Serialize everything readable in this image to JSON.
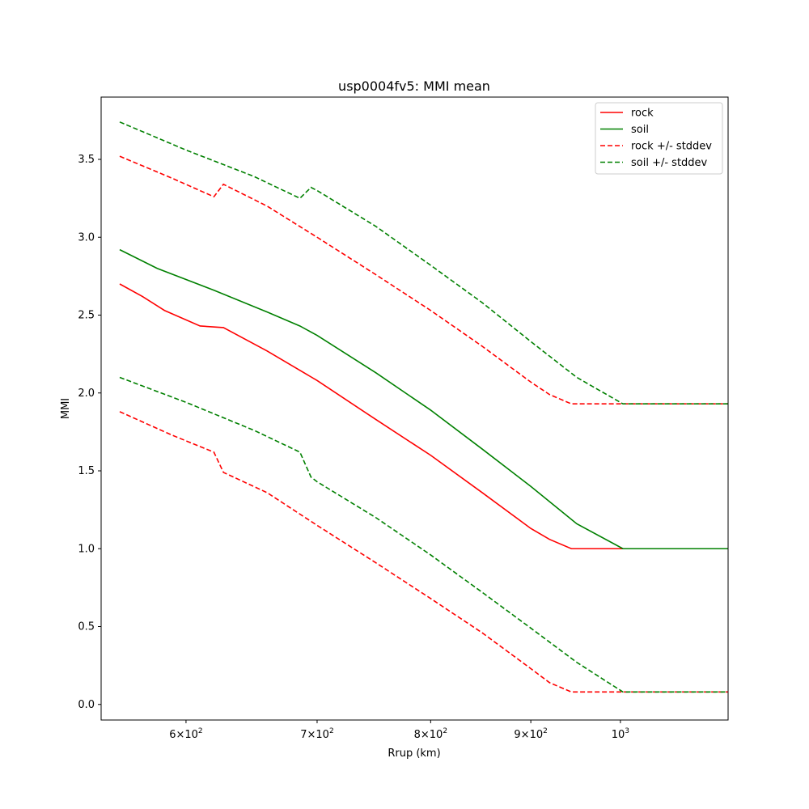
{
  "chart_data": {
    "type": "line",
    "title": "usp0004fv5: MMI mean",
    "xlabel": "Rrup (km)",
    "ylabel": "MMI",
    "xscale": "log",
    "xlim": [
      543,
      1135
    ],
    "ylim": [
      -0.1,
      3.9
    ],
    "grid": false,
    "legend_placement": "top-right",
    "x_tick_labels": [
      {
        "value": 600,
        "base": "6×10",
        "exp": "2"
      },
      {
        "value": 700,
        "base": "7×10",
        "exp": "2"
      },
      {
        "value": 800,
        "base": "8×10",
        "exp": "2"
      },
      {
        "value": 900,
        "base": "9×10",
        "exp": "2"
      },
      {
        "value": 1000,
        "base": "10",
        "exp": "3"
      }
    ],
    "y_ticks": [
      0.0,
      0.5,
      1.0,
      1.5,
      2.0,
      2.5,
      3.0,
      3.5
    ],
    "y_tick_labels": [
      "0.0",
      "0.5",
      "1.0",
      "1.5",
      "2.0",
      "2.5",
      "3.0",
      "3.5"
    ],
    "series": [
      {
        "name": "rock",
        "color": "#ff0000",
        "dash": "solid",
        "points": [
          [
            555,
            2.7
          ],
          [
            570,
            2.62
          ],
          [
            585,
            2.53
          ],
          [
            610,
            2.43
          ],
          [
            627,
            2.42
          ],
          [
            660,
            2.27
          ],
          [
            700,
            2.08
          ],
          [
            750,
            1.83
          ],
          [
            800,
            1.6
          ],
          [
            850,
            1.36
          ],
          [
            900,
            1.13
          ],
          [
            920,
            1.06
          ],
          [
            944,
            1.0
          ],
          [
            1135,
            1.0
          ]
        ]
      },
      {
        "name": "soil",
        "color": "#008000",
        "dash": "solid",
        "points": [
          [
            555,
            2.92
          ],
          [
            580,
            2.8
          ],
          [
            620,
            2.66
          ],
          [
            660,
            2.52
          ],
          [
            686,
            2.43
          ],
          [
            700,
            2.37
          ],
          [
            750,
            2.13
          ],
          [
            800,
            1.89
          ],
          [
            850,
            1.64
          ],
          [
            900,
            1.4
          ],
          [
            950,
            1.16
          ],
          [
            1003,
            1.0
          ],
          [
            1135,
            1.0
          ]
        ]
      },
      {
        "name": "rock +/- stddev",
        "color": "#ff0000",
        "dash": "dashed",
        "points": [
          [
            555,
            3.52
          ],
          [
            590,
            3.38
          ],
          [
            620,
            3.26
          ],
          [
            627,
            3.34
          ],
          [
            660,
            3.2
          ],
          [
            700,
            3.0
          ],
          [
            750,
            2.76
          ],
          [
            800,
            2.53
          ],
          [
            850,
            2.3
          ],
          [
            900,
            2.07
          ],
          [
            920,
            1.99
          ],
          [
            944,
            1.93
          ],
          [
            1135,
            1.93
          ]
        ]
      },
      {
        "name": "rock +/- stddev (lower)",
        "color": "#ff0000",
        "dash": "dashed",
        "points": [
          [
            555,
            1.88
          ],
          [
            590,
            1.73
          ],
          [
            620,
            1.62
          ],
          [
            627,
            1.49
          ],
          [
            660,
            1.36
          ],
          [
            700,
            1.15
          ],
          [
            750,
            0.91
          ],
          [
            800,
            0.68
          ],
          [
            850,
            0.46
          ],
          [
            900,
            0.23
          ],
          [
            920,
            0.14
          ],
          [
            944,
            0.08
          ],
          [
            1135,
            0.08
          ]
        ]
      },
      {
        "name": "soil +/- stddev",
        "color": "#008000",
        "dash": "dashed",
        "points": [
          [
            555,
            3.74
          ],
          [
            600,
            3.56
          ],
          [
            650,
            3.39
          ],
          [
            686,
            3.25
          ],
          [
            695,
            3.32
          ],
          [
            700,
            3.3
          ],
          [
            750,
            3.07
          ],
          [
            800,
            2.82
          ],
          [
            850,
            2.58
          ],
          [
            900,
            2.33
          ],
          [
            950,
            2.1
          ],
          [
            1003,
            1.93
          ],
          [
            1135,
            1.93
          ]
        ]
      },
      {
        "name": "soil +/- stddev (lower)",
        "color": "#008000",
        "dash": "dashed",
        "points": [
          [
            555,
            2.1
          ],
          [
            600,
            1.94
          ],
          [
            650,
            1.76
          ],
          [
            686,
            1.62
          ],
          [
            695,
            1.46
          ],
          [
            700,
            1.43
          ],
          [
            750,
            1.2
          ],
          [
            800,
            0.96
          ],
          [
            850,
            0.72
          ],
          [
            900,
            0.49
          ],
          [
            950,
            0.27
          ],
          [
            1003,
            0.08
          ],
          [
            1135,
            0.08
          ]
        ]
      }
    ],
    "legend": [
      {
        "label": "rock",
        "color": "#ff0000",
        "dash": "solid"
      },
      {
        "label": "soil",
        "color": "#008000",
        "dash": "solid"
      },
      {
        "label": "rock +/- stddev",
        "color": "#ff0000",
        "dash": "dashed"
      },
      {
        "label": "soil +/- stddev",
        "color": "#008000",
        "dash": "dashed"
      }
    ]
  }
}
